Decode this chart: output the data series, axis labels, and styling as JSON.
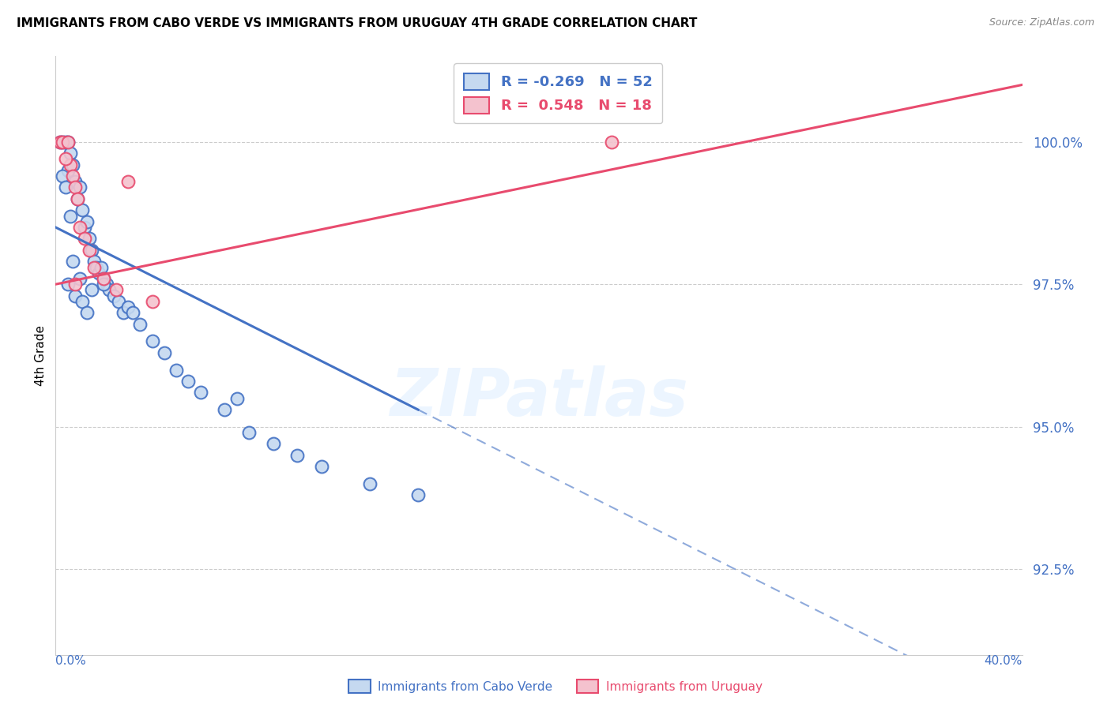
{
  "title": "IMMIGRANTS FROM CABO VERDE VS IMMIGRANTS FROM URUGUAY 4TH GRADE CORRELATION CHART",
  "source": "Source: ZipAtlas.com",
  "ylabel": "4th Grade",
  "xlim": [
    0.0,
    40.0
  ],
  "ylim": [
    91.0,
    101.5
  ],
  "yticks": [
    92.5,
    95.0,
    97.5,
    100.0
  ],
  "ytick_labels": [
    "92.5%",
    "95.0%",
    "97.5%",
    "100.0%"
  ],
  "legend_r_blue": "-0.269",
  "legend_n_blue": "52",
  "legend_r_pink": "0.548",
  "legend_n_pink": "18",
  "legend_label_blue": "Immigrants from Cabo Verde",
  "legend_label_pink": "Immigrants from Uruguay",
  "blue_fill": "#c5d9f0",
  "blue_edge": "#4472c4",
  "pink_fill": "#f4c2ce",
  "pink_edge": "#e84b6e",
  "axis_label_color": "#4472c4",
  "watermark": "ZIPatlas",
  "cabo_x": [
    0.2,
    0.3,
    0.4,
    0.5,
    0.5,
    0.6,
    0.7,
    0.8,
    0.9,
    1.0,
    1.1,
    1.2,
    1.3,
    1.4,
    1.5,
    1.6,
    1.7,
    1.8,
    1.9,
    2.0,
    2.1,
    2.2,
    2.4,
    2.6,
    2.8,
    3.0,
    3.2,
    3.5,
    4.0,
    4.5,
    5.0,
    5.5,
    6.0,
    7.0,
    7.5,
    8.0,
    9.0,
    10.0,
    11.0,
    13.0,
    15.0,
    0.3,
    0.4,
    0.5,
    0.6,
    0.7,
    0.8,
    1.0,
    1.1,
    1.3,
    1.5,
    2.0
  ],
  "cabo_y": [
    100.0,
    100.0,
    100.0,
    100.0,
    99.5,
    99.8,
    99.6,
    99.3,
    99.0,
    99.2,
    98.8,
    98.5,
    98.6,
    98.3,
    98.1,
    97.9,
    97.8,
    97.7,
    97.8,
    97.6,
    97.5,
    97.4,
    97.3,
    97.2,
    97.0,
    97.1,
    97.0,
    96.8,
    96.5,
    96.3,
    96.0,
    95.8,
    95.6,
    95.3,
    95.5,
    94.9,
    94.7,
    94.5,
    94.3,
    94.0,
    93.8,
    99.4,
    99.2,
    97.5,
    98.7,
    97.9,
    97.3,
    97.6,
    97.2,
    97.0,
    97.4,
    97.5
  ],
  "uru_x": [
    0.2,
    0.3,
    0.5,
    0.6,
    0.7,
    0.8,
    0.9,
    1.0,
    1.2,
    1.4,
    1.6,
    2.0,
    2.5,
    3.0,
    4.0,
    23.0,
    0.4,
    0.8
  ],
  "uru_y": [
    100.0,
    100.0,
    100.0,
    99.6,
    99.4,
    99.2,
    99.0,
    98.5,
    98.3,
    98.1,
    97.8,
    97.6,
    97.4,
    99.3,
    97.2,
    100.0,
    99.7,
    97.5
  ],
  "blue_trend_x0": 0.0,
  "blue_trend_x1": 15.0,
  "blue_trend_y0": 98.5,
  "blue_trend_y1": 95.3,
  "pink_trend_x0": 0.0,
  "pink_trend_x1": 40.0,
  "pink_trend_y0": 97.5,
  "pink_trend_y1": 101.0
}
